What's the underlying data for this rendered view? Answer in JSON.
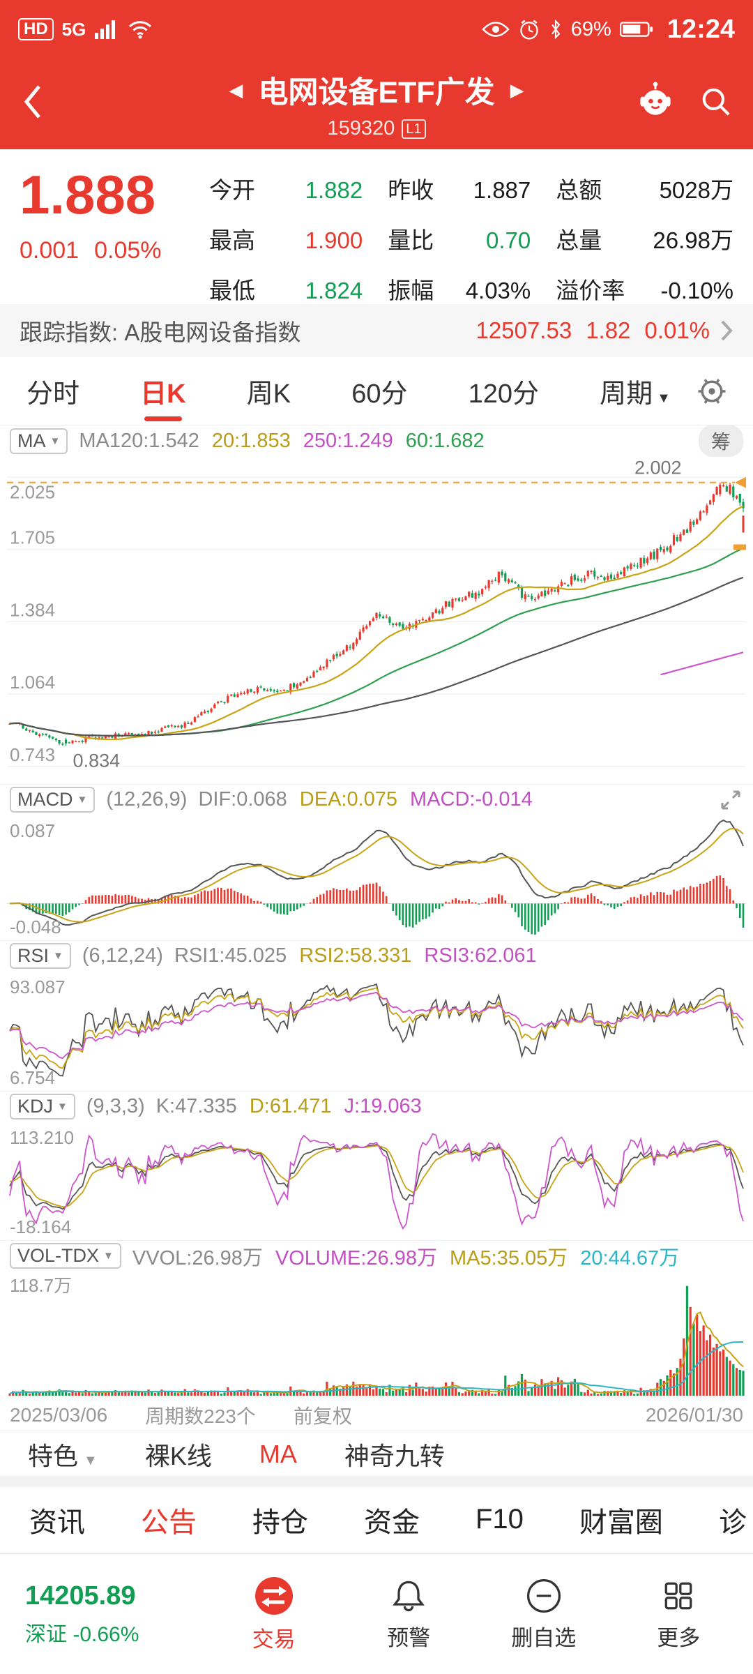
{
  "status_bar": {
    "hd": "HD",
    "net": "5G",
    "battery": "69%",
    "time": "12:24"
  },
  "header": {
    "title": "电网设备ETF广发",
    "prev": "◀",
    "next": "▶",
    "code": "159320",
    "badge": "L1"
  },
  "quote": {
    "price": "1.888",
    "change": "0.001",
    "change_pct": "0.05%",
    "cells": [
      {
        "label": "今开",
        "value": "1.882",
        "color": "green"
      },
      {
        "label": "昨收",
        "value": "1.887",
        "color": "dark"
      },
      {
        "label": "总额",
        "value": "5028万",
        "color": "dark"
      },
      {
        "label": "最高",
        "value": "1.900",
        "color": "red"
      },
      {
        "label": "量比",
        "value": "0.70",
        "color": "green"
      },
      {
        "label": "总量",
        "value": "26.98万",
        "color": "dark"
      },
      {
        "label": "最低",
        "value": "1.824",
        "color": "green"
      },
      {
        "label": "振幅",
        "value": "4.03%",
        "color": "dark"
      },
      {
        "label": "溢价率",
        "value": "-0.10%",
        "color": "dark"
      }
    ]
  },
  "index_row": {
    "label": "跟踪指数: A股电网设备指数",
    "value": "12507.53",
    "change": "1.82",
    "pct": "0.01%"
  },
  "chart_tabs": [
    {
      "label": "分时"
    },
    {
      "label": "日K",
      "active": true
    },
    {
      "label": "周K"
    },
    {
      "label": "60分"
    },
    {
      "label": "120分"
    },
    {
      "label": "周期",
      "dropdown": true
    }
  ],
  "indicators": {
    "ma": {
      "box": "MA",
      "chip": "筹",
      "values": [
        {
          "text": "MA120:1.542",
          "color": "c-gray"
        },
        {
          "text": "20:1.853",
          "color": "c-yellow"
        },
        {
          "text": "250:1.249",
          "color": "c-magenta"
        },
        {
          "text": "60:1.682",
          "color": "c-green"
        }
      ]
    },
    "macd": {
      "box": "MACD",
      "params": "(12,26,9)",
      "values": [
        {
          "text": "DIF:0.068",
          "color": "c-gray"
        },
        {
          "text": "DEA:0.075",
          "color": "c-yellow"
        },
        {
          "text": "MACD:-0.014",
          "color": "c-magenta"
        }
      ]
    },
    "rsi": {
      "box": "RSI",
      "params": "(6,12,24)",
      "values": [
        {
          "text": "RSI1:45.025",
          "color": "c-gray"
        },
        {
          "text": "RSI2:58.331",
          "color": "c-yellow"
        },
        {
          "text": "RSI3:62.061",
          "color": "c-magenta"
        }
      ]
    },
    "kdj": {
      "box": "KDJ",
      "params": "(9,3,3)",
      "values": [
        {
          "text": "K:47.335",
          "color": "c-gray"
        },
        {
          "text": "D:61.471",
          "color": "c-yellow"
        },
        {
          "text": "J:19.063",
          "color": "c-magenta"
        }
      ]
    },
    "vol": {
      "box": "VOL-TDX",
      "values": [
        {
          "text": "VVOL:26.98万",
          "color": "c-gray"
        },
        {
          "text": "VOLUME:26.98万",
          "color": "c-magenta"
        },
        {
          "text": "MA5:35.05万",
          "color": "c-yellow"
        },
        {
          "text": "20:44.67万",
          "color": "c-cyan"
        }
      ]
    }
  },
  "chart": {
    "num_candles": 223,
    "max_label": "2.002",
    "min_label": "0.834",
    "max_price": 2.002,
    "min_price": 0.834,
    "last_close": 1.888,
    "main_axis": [
      "2.025",
      "1.705",
      "1.384",
      "1.064",
      "0.743"
    ],
    "macd_axis": [
      "0.087",
      "-0.048"
    ],
    "rsi_axis": [
      "93.087",
      "6.754"
    ],
    "kdj_axis": [
      "113.210",
      "-18.164"
    ],
    "vol_axis": [
      "118.7万"
    ],
    "price_anchors": [
      [
        0,
        0.945
      ],
      [
        0.03,
        0.9
      ],
      [
        0.075,
        0.845
      ],
      [
        0.12,
        0.875
      ],
      [
        0.18,
        0.885
      ],
      [
        0.24,
        0.93
      ],
      [
        0.3,
        1.05
      ],
      [
        0.34,
        1.09
      ],
      [
        0.37,
        1.07
      ],
      [
        0.42,
        1.17
      ],
      [
        0.47,
        1.3
      ],
      [
        0.5,
        1.42
      ],
      [
        0.53,
        1.36
      ],
      [
        0.56,
        1.38
      ],
      [
        0.6,
        1.47
      ],
      [
        0.64,
        1.52
      ],
      [
        0.67,
        1.6
      ],
      [
        0.7,
        1.5
      ],
      [
        0.73,
        1.5
      ],
      [
        0.76,
        1.56
      ],
      [
        0.79,
        1.6
      ],
      [
        0.82,
        1.58
      ],
      [
        0.85,
        1.64
      ],
      [
        0.88,
        1.68
      ],
      [
        0.9,
        1.73
      ],
      [
        0.93,
        1.82
      ],
      [
        0.955,
        1.93
      ],
      [
        0.97,
        2.0
      ],
      [
        0.985,
        1.96
      ],
      [
        1,
        1.888
      ]
    ],
    "colors": {
      "up": "#e8392e",
      "down": "#0f9e53",
      "ma20": "#c8a415",
      "ma60": "#2e9e4f",
      "ma120": "#555555",
      "ma250": "#cc55cc",
      "orange": "#f0a030",
      "cyan": "#2ab5c8",
      "dif": "#555555",
      "dea": "#c8a415"
    }
  },
  "footer": {
    "start": "2025/03/06",
    "periods": "周期数223个",
    "adjust": "前复权",
    "end": "2026/01/30"
  },
  "feature_row": [
    {
      "label": "特色",
      "dropdown": true
    },
    {
      "label": "裸K线"
    },
    {
      "label": "MA",
      "color": "red"
    },
    {
      "label": "神奇九转"
    }
  ],
  "content_tabs": [
    {
      "label": "资讯"
    },
    {
      "label": "公告",
      "active": true
    },
    {
      "label": "持仓"
    },
    {
      "label": "资金"
    },
    {
      "label": "F10"
    },
    {
      "label": "财富圈"
    },
    {
      "label": "诊"
    }
  ],
  "bottom_nav": {
    "index_value": "14205.89",
    "index_name": "深证",
    "index_change": "-0.66%",
    "items": [
      {
        "label": "交易",
        "active": true
      },
      {
        "label": "预警"
      },
      {
        "label": "删自选"
      },
      {
        "label": "更多"
      }
    ]
  }
}
